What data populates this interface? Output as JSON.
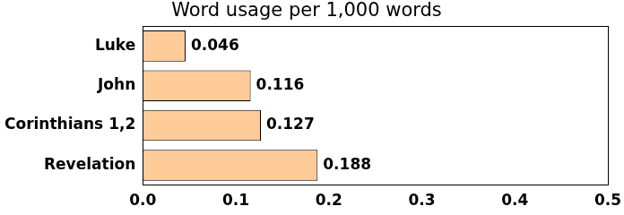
{
  "chart_data": {
    "type": "bar",
    "orientation": "horizontal",
    "title": "Word usage per 1,000 words",
    "categories": [
      "Luke",
      "John",
      "Corinthians 1,2",
      "Revelation"
    ],
    "values": [
      0.046,
      0.116,
      0.127,
      0.188
    ],
    "color": "#ffcc99",
    "xlim": [
      0,
      0.5
    ],
    "xticks": [
      {
        "value": 0,
        "label": "0.0"
      },
      0.1,
      0.2,
      0.3,
      0.4,
      0.5
    ],
    "grid": false,
    "data_labels": true
  }
}
